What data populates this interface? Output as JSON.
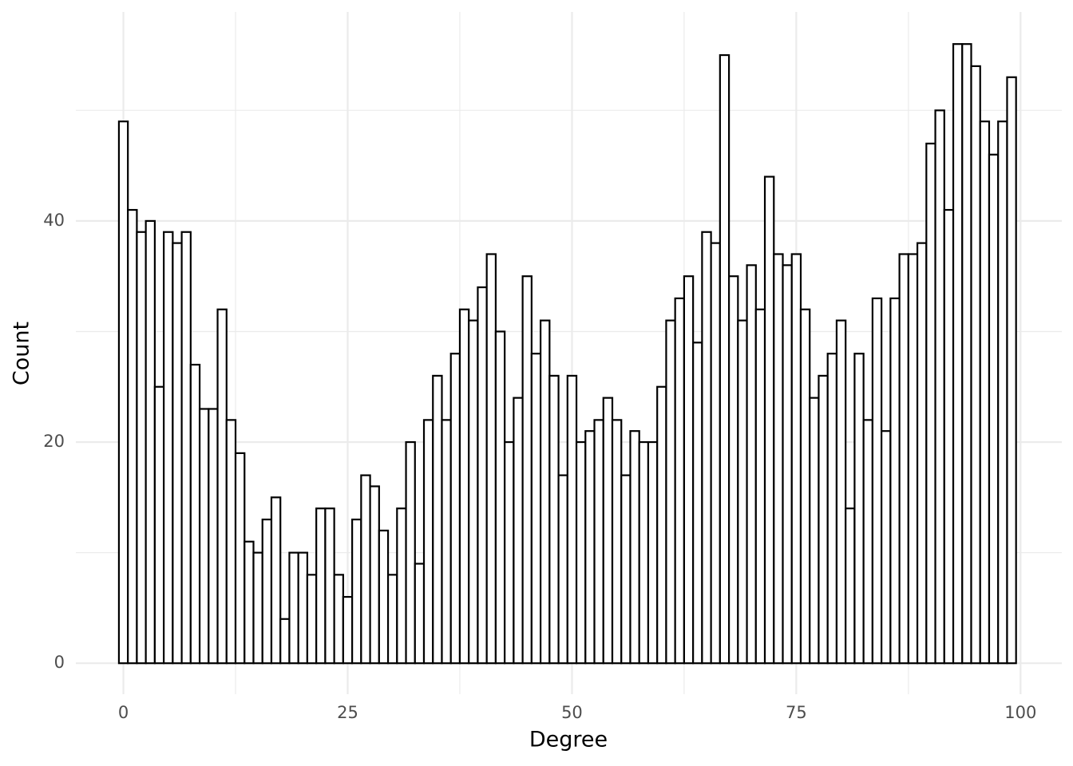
{
  "chart_data": {
    "type": "histogram",
    "x_label": "Degree",
    "y_label": "Count",
    "bins": [
      -0.5,
      0.5,
      1.5,
      2.5,
      3.5,
      4.5,
      5.5,
      6.5,
      7.5,
      8.5,
      9.5,
      10.5,
      11.5,
      12.5,
      13.5,
      14.5,
      15.5,
      16.5,
      17.5,
      18.5,
      19.5,
      20.5,
      21.5,
      22.5,
      23.5,
      24.5,
      25.5,
      26.5,
      27.5,
      28.5,
      29.5,
      30.5,
      31.5,
      32.5,
      33.5,
      34.5,
      35.5,
      36.5,
      37.5,
      38.5,
      39.5,
      40.5,
      41.5,
      42.5,
      43.5,
      44.5,
      45.5,
      46.5,
      47.5,
      48.5,
      49.5,
      50.5,
      51.5,
      52.5,
      53.5,
      54.5,
      55.5,
      56.5,
      57.5,
      58.5,
      59.5,
      60.5,
      61.5,
      62.5,
      63.5,
      64.5,
      65.5,
      66.5,
      67.5,
      68.5,
      69.5,
      70.5,
      71.5,
      72.5,
      73.5,
      74.5,
      75.5,
      76.5,
      77.5,
      78.5,
      79.5,
      80.5,
      81.5,
      82.5,
      83.5,
      84.5,
      85.5,
      86.5,
      87.5,
      88.5,
      89.5,
      90.5,
      91.5,
      92.5,
      93.5,
      94.5,
      95.5,
      96.5,
      97.5,
      98.5,
      99.5
    ],
    "values": [
      49,
      41,
      39,
      40,
      25,
      39,
      38,
      39,
      27,
      23,
      23,
      32,
      22,
      19,
      11,
      10,
      13,
      15,
      4,
      10,
      10,
      8,
      14,
      14,
      8,
      6,
      13,
      17,
      16,
      12,
      8,
      14,
      20,
      9,
      22,
      26,
      22,
      28,
      32,
      31,
      34,
      37,
      30,
      20,
      24,
      35,
      28,
      31,
      26,
      17,
      26,
      20,
      21,
      22,
      24,
      22,
      17,
      21,
      20,
      20,
      25,
      31,
      33,
      35,
      29,
      39,
      38,
      55,
      35,
      31,
      36,
      32,
      44,
      37,
      36,
      37,
      32,
      24,
      26,
      28,
      31,
      14,
      28,
      22,
      33,
      21,
      33,
      37,
      37,
      38,
      47,
      50,
      41,
      56,
      56,
      54,
      49,
      46,
      49,
      53
    ],
    "color": "#000000",
    "fill": "#ffffff",
    "xlim": [
      -5.3,
      104.6
    ],
    "xticks": [
      0,
      25,
      50,
      75,
      100
    ],
    "x_minor_ticks": [
      12.5,
      37.5,
      62.5,
      87.5
    ],
    "ylim": [
      -2.8,
      58.9
    ],
    "yticks": [
      0,
      20,
      40
    ],
    "y_minor_ticks": [
      10,
      30,
      50
    ],
    "grid": true
  }
}
